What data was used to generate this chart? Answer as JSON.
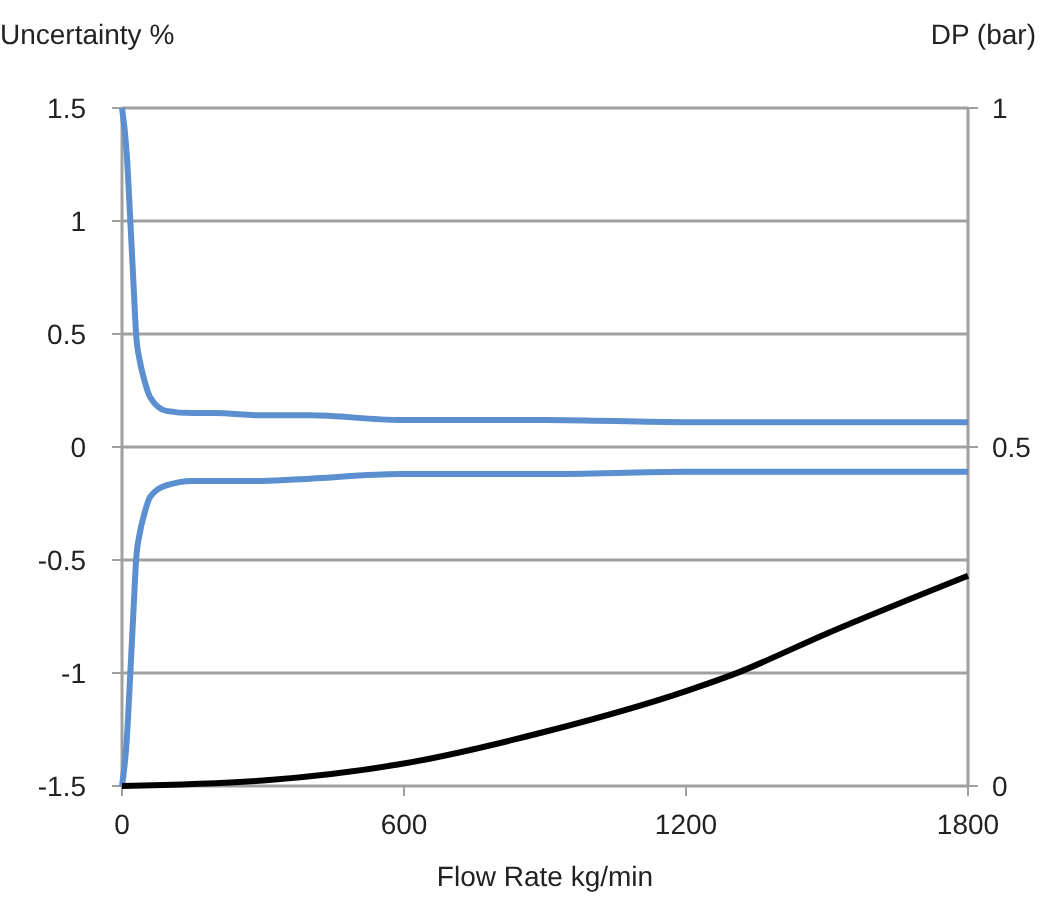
{
  "chart_data": {
    "type": "line",
    "xlabel": "Flow Rate kg/min",
    "ylabel": "Uncertainty %",
    "y2label": "DP (bar)",
    "xlim": [
      0,
      1800
    ],
    "xticks": [
      0,
      600,
      1200,
      1800
    ],
    "ylim": [
      -1.5,
      1.5
    ],
    "yticks": [
      -1.5,
      -1,
      -0.5,
      0,
      0.5,
      1,
      1.5
    ],
    "y2lim": [
      0,
      1
    ],
    "y2ticks": [
      0,
      0.5,
      1
    ],
    "grid": "y",
    "series": [
      {
        "color": "#5b8fd0",
        "x": [
          0,
          10,
          17,
          25,
          30,
          38,
          47,
          60,
          94,
          150,
          196,
          300,
          400,
          590,
          900,
          1200,
          1500,
          1800
        ],
        "values": [
          1.5,
          1.3,
          1.03,
          0.7,
          0.5,
          0.38,
          0.3,
          0.22,
          0.16,
          0.15,
          0.15,
          0.14,
          0.14,
          0.12,
          0.12,
          0.11,
          0.11,
          0.11
        ]
      },
      {
        "color": "#5b8fd0",
        "x": [
          0,
          10,
          17,
          25,
          30,
          38,
          47,
          60,
          94,
          150,
          196,
          300,
          400,
          590,
          900,
          1200,
          1500,
          1800
        ],
        "values": [
          -1.5,
          -1.3,
          -1.03,
          -0.7,
          -0.5,
          -0.38,
          -0.3,
          -0.22,
          -0.17,
          -0.15,
          -0.15,
          -0.15,
          -0.14,
          -0.12,
          -0.12,
          -0.11,
          -0.11,
          -0.11
        ]
      },
      {
        "color": "#000000",
        "axis": "y2",
        "x": [
          0,
          300,
          590,
          900,
          1200,
          1302,
          1500,
          1800
        ],
        "values": [
          0,
          0.008,
          0.032,
          0.08,
          0.14,
          0.165,
          0.225,
          0.31
        ]
      }
    ]
  }
}
